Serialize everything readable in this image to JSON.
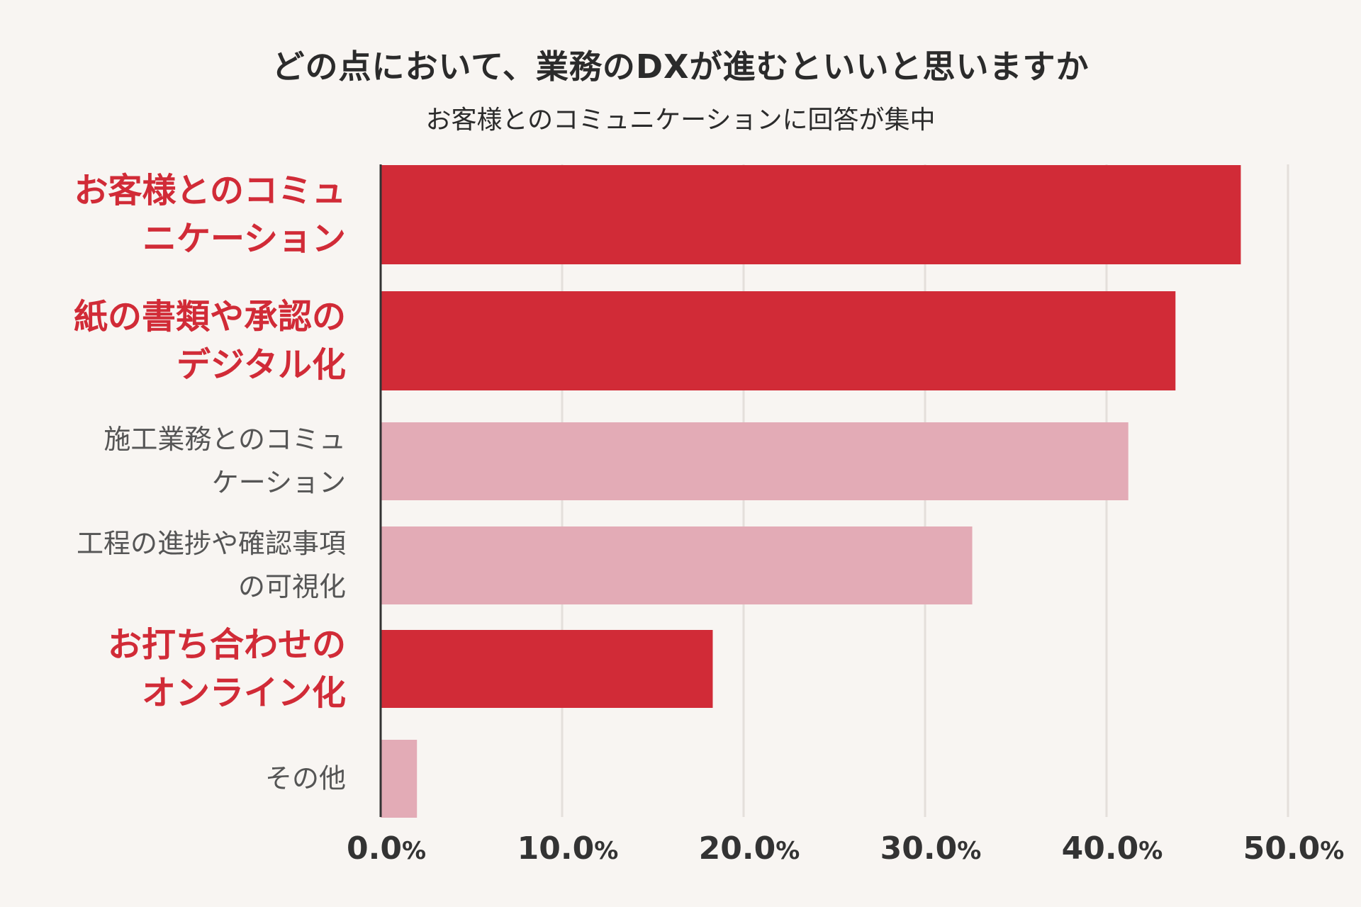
{
  "chart_data": {
    "type": "bar",
    "orientation": "horizontal",
    "title": "どの点において、業務のDXが進むといいと思いますか",
    "subtitle": "お客様とのコミュニケーションに回答が集中",
    "xlabel": "",
    "ylabel": "",
    "xlim": [
      0,
      50
    ],
    "grid": true,
    "ticks": [
      {
        "value": 0,
        "number": "0.0",
        "unit": "%"
      },
      {
        "value": 10,
        "number": "10.0",
        "unit": "%"
      },
      {
        "value": 20,
        "number": "20.0",
        "unit": "%"
      },
      {
        "value": 30,
        "number": "30.0",
        "unit": "%"
      },
      {
        "value": 40,
        "number": "40.0",
        "unit": "%"
      },
      {
        "value": 50,
        "number": "50.0",
        "unit": "%"
      }
    ],
    "categories": [
      "お客様とのコミュ\nニケーション",
      "紙の書類や承認の\nデジタル化",
      "施工業務とのコミュ\nケーション",
      "工程の進捗や確認事項\nの可視化",
      "お打ち合わせの\nオンライン化",
      "その他"
    ],
    "values": [
      47.4,
      43.8,
      41.2,
      32.6,
      18.3,
      2.0
    ],
    "highlighted": [
      true,
      true,
      false,
      false,
      true,
      false
    ],
    "colors": {
      "highlight": "#d12b37",
      "normal": "#e3abb6",
      "grid": "#e4dfdb",
      "axis": "#333333"
    }
  }
}
